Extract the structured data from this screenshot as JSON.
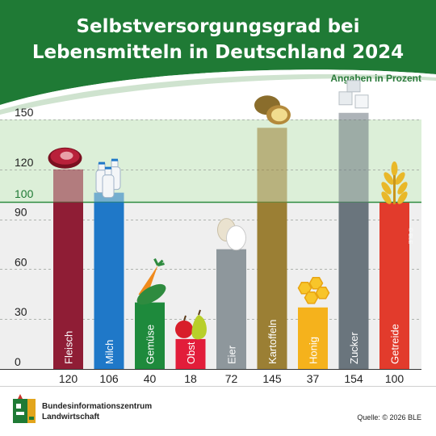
{
  "header": {
    "title_line1": "Selbstversorgungsgrad bei",
    "title_line2": "Lebensmitteln in Deutschland 2024",
    "unit_note": "Angaben in Prozent"
  },
  "footer": {
    "organization_line1": "Bundesinformationszentrum",
    "organization_line2": "Landwirtschaft",
    "source": "Quelle: © 2026 BLE",
    "watermark": "© BLE"
  },
  "colors": {
    "header_green": "#1f7a35",
    "reference_line": "#2e8b3f",
    "band_above_100": "#dcefd8",
    "band_below_100": "#eeeeee"
  },
  "chart_data": {
    "type": "bar",
    "title": "Selbstversorgungsgrad bei Lebensmitteln in Deutschland 2024",
    "ylabel": "Angaben in Prozent",
    "ylim": [
      0,
      150
    ],
    "yticks": [
      0,
      30,
      60,
      90,
      120,
      150
    ],
    "reference_line": {
      "value": 100,
      "label": "100"
    },
    "grid": true,
    "categories": [
      "Fleisch",
      "Milch",
      "Gemüse",
      "Obst",
      "Eier",
      "Kartoffeln",
      "Honig",
      "Zucker",
      "Getreide"
    ],
    "values": [
      120,
      106,
      40,
      18,
      72,
      145,
      37,
      154,
      100
    ],
    "value_labels": [
      "120",
      "106",
      "40",
      "18",
      "72",
      "145",
      "37",
      "154",
      "100"
    ],
    "bar_colors": [
      "#8f1d35",
      "#1f78c8",
      "#1e8a3c",
      "#e21d3a",
      "#8e979c",
      "#9b7f34",
      "#f5b21c",
      "#6a757d",
      "#e23b2c"
    ],
    "icons": [
      "meat-icon",
      "milk-bottles-icon",
      "vegetables-icon",
      "fruit-icon",
      "eggs-icon",
      "potatoes-icon",
      "honeycomb-icon",
      "sugar-cubes-icon",
      "wheat-icon"
    ]
  }
}
